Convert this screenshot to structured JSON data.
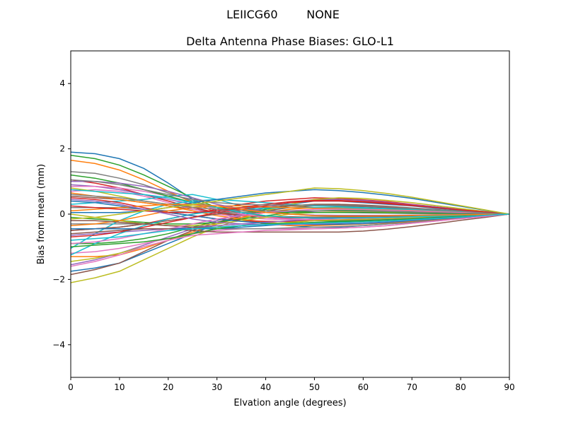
{
  "chart_data": {
    "type": "line",
    "suptitle": "LEIICG60        NONE",
    "title": "Delta Antenna Phase Biases: GLO-L1",
    "xlabel": "Elvation angle (degrees)",
    "ylabel": "Bias from mean (mm)",
    "xlim": [
      0,
      90
    ],
    "ylim": [
      -5,
      5
    ],
    "xticks": [
      0,
      10,
      20,
      30,
      40,
      50,
      60,
      70,
      80,
      90
    ],
    "yticks": [
      -4,
      -2,
      0,
      2,
      4
    ],
    "ytick_labels": [
      "−4",
      "−2",
      "0",
      "2",
      "4"
    ],
    "grid": false,
    "legend": "none",
    "x": [
      0,
      5,
      10,
      15,
      20,
      25,
      30,
      35,
      40,
      45,
      50,
      55,
      60,
      65,
      70,
      75,
      80,
      85,
      90
    ],
    "series": [
      {
        "color": "#1f77b4",
        "values": [
          1.9,
          1.85,
          1.7,
          1.4,
          0.95,
          0.45,
          0.1,
          -0.15,
          -0.3,
          -0.35,
          -0.4,
          -0.4,
          -0.35,
          -0.3,
          -0.25,
          -0.18,
          -0.12,
          -0.06,
          0
        ]
      },
      {
        "color": "#ff7f0e",
        "values": [
          1.65,
          1.55,
          1.35,
          1.05,
          0.7,
          0.35,
          0.05,
          -0.15,
          -0.3,
          -0.35,
          -0.35,
          -0.33,
          -0.3,
          -0.27,
          -0.22,
          -0.16,
          -0.1,
          -0.05,
          0
        ]
      },
      {
        "color": "#2ca02c",
        "values": [
          1.8,
          1.7,
          1.5,
          1.2,
          0.85,
          0.5,
          0.2,
          0.0,
          -0.1,
          -0.15,
          -0.2,
          -0.2,
          -0.18,
          -0.15,
          -0.12,
          -0.09,
          -0.06,
          -0.03,
          0
        ]
      },
      {
        "color": "#d62728",
        "values": [
          1.05,
          0.95,
          0.8,
          0.6,
          0.4,
          0.2,
          0.05,
          -0.05,
          -0.1,
          -0.12,
          -0.12,
          -0.12,
          -0.11,
          -0.1,
          -0.08,
          -0.06,
          -0.04,
          -0.02,
          0
        ]
      },
      {
        "color": "#9467bd",
        "values": [
          0.9,
          0.85,
          0.75,
          0.6,
          0.45,
          0.3,
          0.2,
          0.15,
          0.1,
          0.08,
          0.06,
          0.05,
          0.04,
          0.03,
          0.02,
          0.015,
          0.01,
          0.005,
          0
        ]
      },
      {
        "color": "#8c564b",
        "values": [
          0.55,
          0.5,
          0.45,
          0.35,
          0.25,
          0.15,
          0.05,
          -0.02,
          -0.06,
          -0.08,
          -0.09,
          -0.09,
          -0.08,
          -0.07,
          -0.06,
          -0.04,
          -0.03,
          -0.01,
          0
        ]
      },
      {
        "color": "#e377c2",
        "values": [
          0.7,
          0.75,
          0.7,
          0.55,
          0.35,
          0.15,
          0.0,
          -0.1,
          -0.15,
          -0.17,
          -0.18,
          -0.17,
          -0.15,
          -0.13,
          -0.1,
          -0.08,
          -0.05,
          -0.03,
          0
        ]
      },
      {
        "color": "#7f7f7f",
        "values": [
          1.3,
          1.25,
          1.1,
          0.9,
          0.65,
          0.4,
          0.2,
          0.05,
          -0.05,
          -0.1,
          -0.12,
          -0.12,
          -0.11,
          -0.1,
          -0.08,
          -0.06,
          -0.04,
          -0.02,
          0
        ]
      },
      {
        "color": "#bcbd22",
        "values": [
          0.8,
          0.7,
          0.55,
          0.4,
          0.3,
          0.25,
          0.2,
          0.2,
          0.22,
          0.25,
          0.27,
          0.26,
          0.24,
          0.2,
          0.16,
          0.12,
          0.08,
          0.04,
          0
        ]
      },
      {
        "color": "#17becf",
        "values": [
          0.3,
          0.35,
          0.4,
          0.45,
          0.55,
          0.6,
          0.45,
          0.25,
          0.1,
          0.0,
          -0.05,
          -0.06,
          -0.06,
          -0.05,
          -0.04,
          -0.03,
          -0.02,
          -0.01,
          0
        ]
      },
      {
        "color": "#1f77b4",
        "values": [
          -1.75,
          -1.65,
          -1.5,
          -1.2,
          -0.9,
          -0.6,
          -0.3,
          -0.05,
          0.15,
          0.3,
          0.4,
          0.4,
          0.35,
          0.3,
          0.25,
          0.18,
          0.12,
          0.06,
          0
        ]
      },
      {
        "color": "#ff7f0e",
        "values": [
          -1.3,
          -1.3,
          -1.25,
          -1.05,
          -0.8,
          -0.55,
          -0.3,
          -0.1,
          0.05,
          0.15,
          0.2,
          0.2,
          0.18,
          0.15,
          0.12,
          0.09,
          0.06,
          0.03,
          0
        ]
      },
      {
        "color": "#2ca02c",
        "values": [
          -0.9,
          -0.9,
          -0.85,
          -0.75,
          -0.6,
          -0.4,
          -0.2,
          0.0,
          0.15,
          0.25,
          0.3,
          0.3,
          0.27,
          0.23,
          0.18,
          0.13,
          0.09,
          0.04,
          0
        ]
      },
      {
        "color": "#d62728",
        "values": [
          -0.5,
          -0.45,
          -0.4,
          -0.3,
          -0.15,
          0.0,
          0.15,
          0.3,
          0.4,
          0.45,
          0.5,
          0.48,
          0.44,
          0.38,
          0.3,
          0.22,
          0.15,
          0.07,
          0
        ]
      },
      {
        "color": "#9467bd",
        "values": [
          -1.55,
          -1.4,
          -1.2,
          -0.95,
          -0.7,
          -0.45,
          -0.2,
          0.0,
          0.2,
          0.35,
          0.45,
          0.45,
          0.42,
          0.36,
          0.29,
          0.22,
          0.14,
          0.07,
          0
        ]
      },
      {
        "color": "#8c564b",
        "values": [
          -1.85,
          -1.7,
          -1.5,
          -1.15,
          -0.8,
          -0.5,
          -0.25,
          -0.05,
          0.1,
          0.2,
          0.25,
          0.25,
          0.23,
          0.2,
          0.16,
          0.12,
          0.08,
          0.04,
          0
        ]
      },
      {
        "color": "#e377c2",
        "values": [
          -1.2,
          -1.15,
          -1.05,
          -0.9,
          -0.75,
          -0.6,
          -0.5,
          -0.45,
          -0.45,
          -0.45,
          -0.45,
          -0.43,
          -0.4,
          -0.35,
          -0.28,
          -0.21,
          -0.14,
          -0.07,
          0
        ]
      },
      {
        "color": "#7f7f7f",
        "values": [
          -0.3,
          -0.3,
          -0.3,
          -0.3,
          -0.35,
          -0.4,
          -0.45,
          -0.45,
          -0.45,
          -0.42,
          -0.4,
          -0.38,
          -0.35,
          -0.3,
          -0.25,
          -0.18,
          -0.12,
          -0.06,
          0
        ]
      },
      {
        "color": "#bcbd22",
        "values": [
          -2.1,
          -1.95,
          -1.75,
          -1.4,
          -1.05,
          -0.7,
          -0.4,
          -0.15,
          0.1,
          0.3,
          0.45,
          0.5,
          0.48,
          0.42,
          0.35,
          0.26,
          0.17,
          0.08,
          0
        ]
      },
      {
        "color": "#17becf",
        "values": [
          -1.05,
          -0.6,
          -0.2,
          0.1,
          0.3,
          0.4,
          0.45,
          0.4,
          0.35,
          0.3,
          0.25,
          0.23,
          0.2,
          0.17,
          0.14,
          0.1,
          0.07,
          0.03,
          0
        ]
      },
      {
        "color": "#1f77b4",
        "values": [
          0.05,
          0.05,
          0.05,
          0.1,
          0.2,
          0.35,
          0.45,
          0.55,
          0.65,
          0.7,
          0.75,
          0.72,
          0.66,
          0.58,
          0.48,
          0.36,
          0.24,
          0.12,
          0
        ]
      },
      {
        "color": "#ff7f0e",
        "values": [
          0.65,
          0.55,
          0.45,
          0.35,
          0.25,
          0.1,
          -0.05,
          -0.15,
          -0.25,
          -0.3,
          -0.32,
          -0.32,
          -0.3,
          -0.26,
          -0.21,
          -0.16,
          -0.1,
          -0.05,
          0
        ]
      },
      {
        "color": "#2ca02c",
        "values": [
          -0.1,
          -0.15,
          -0.2,
          -0.25,
          -0.3,
          -0.3,
          -0.25,
          -0.15,
          -0.05,
          0.05,
          0.1,
          0.12,
          0.12,
          0.1,
          0.08,
          0.06,
          0.04,
          0.02,
          0
        ]
      },
      {
        "color": "#d62728",
        "values": [
          0.5,
          0.45,
          0.35,
          0.2,
          0.05,
          -0.05,
          -0.15,
          -0.2,
          -0.22,
          -0.22,
          -0.2,
          -0.18,
          -0.16,
          -0.14,
          -0.11,
          -0.08,
          -0.05,
          -0.03,
          0
        ]
      },
      {
        "color": "#9467bd",
        "values": [
          -0.65,
          -0.6,
          -0.55,
          -0.5,
          -0.45,
          -0.4,
          -0.35,
          -0.3,
          -0.25,
          -0.2,
          -0.15,
          -0.13,
          -0.12,
          -0.1,
          -0.08,
          -0.06,
          -0.04,
          -0.02,
          0
        ]
      },
      {
        "color": "#8c564b",
        "values": [
          -0.5,
          -0.45,
          -0.4,
          -0.3,
          -0.2,
          -0.1,
          0.0,
          0.1,
          0.2,
          0.25,
          0.3,
          0.3,
          0.28,
          0.24,
          0.19,
          0.14,
          0.09,
          0.05,
          0
        ]
      },
      {
        "color": "#e377c2",
        "values": [
          0.85,
          0.85,
          0.8,
          0.7,
          0.55,
          0.35,
          0.15,
          0.0,
          -0.1,
          -0.15,
          -0.17,
          -0.17,
          -0.15,
          -0.13,
          -0.11,
          -0.08,
          -0.05,
          -0.03,
          0
        ]
      },
      {
        "color": "#7f7f7f",
        "values": [
          0.2,
          0.2,
          0.2,
          0.15,
          0.1,
          0.05,
          0.05,
          0.05,
          0.05,
          0.05,
          0.05,
          0.05,
          0.05,
          0.04,
          0.03,
          0.02,
          0.02,
          0.01,
          0
        ]
      },
      {
        "color": "#bcbd22",
        "values": [
          0.0,
          -0.1,
          -0.2,
          -0.3,
          -0.35,
          -0.35,
          -0.3,
          -0.2,
          -0.1,
          0.0,
          0.05,
          0.07,
          0.07,
          0.06,
          0.05,
          0.04,
          0.03,
          0.01,
          0
        ]
      },
      {
        "color": "#17becf",
        "values": [
          -1.25,
          -0.9,
          -0.6,
          -0.35,
          -0.15,
          0.0,
          0.1,
          0.15,
          0.18,
          0.2,
          0.2,
          0.19,
          0.17,
          0.15,
          0.12,
          0.09,
          0.06,
          0.03,
          0
        ]
      },
      {
        "color": "#1f77b4",
        "values": [
          0.4,
          0.35,
          0.25,
          0.15,
          0.05,
          -0.05,
          -0.15,
          -0.22,
          -0.28,
          -0.3,
          -0.32,
          -0.31,
          -0.29,
          -0.25,
          -0.2,
          -0.15,
          -0.1,
          -0.05,
          0
        ]
      },
      {
        "color": "#ff7f0e",
        "values": [
          -0.35,
          -0.3,
          -0.2,
          -0.05,
          0.1,
          0.2,
          0.25,
          0.25,
          0.22,
          0.2,
          0.18,
          0.17,
          0.15,
          0.13,
          0.11,
          0.08,
          0.05,
          0.03,
          0
        ]
      },
      {
        "color": "#2ca02c",
        "values": [
          1.2,
          1.1,
          0.95,
          0.75,
          0.55,
          0.35,
          0.2,
          0.1,
          0.05,
          0.05,
          0.05,
          0.05,
          0.05,
          0.04,
          0.03,
          0.02,
          0.02,
          0.01,
          0
        ]
      },
      {
        "color": "#d62728",
        "values": [
          -0.7,
          -0.65,
          -0.55,
          -0.4,
          -0.25,
          -0.1,
          0.05,
          0.15,
          0.25,
          0.35,
          0.4,
          0.4,
          0.37,
          0.32,
          0.26,
          0.2,
          0.13,
          0.06,
          0
        ]
      },
      {
        "color": "#9467bd",
        "values": [
          1.0,
          1.0,
          0.95,
          0.85,
          0.7,
          0.5,
          0.3,
          0.15,
          0.05,
          0.0,
          -0.03,
          -0.04,
          -0.04,
          -0.04,
          -0.03,
          -0.02,
          -0.02,
          -0.01,
          0
        ]
      },
      {
        "color": "#8c564b",
        "values": [
          -0.2,
          -0.2,
          -0.25,
          -0.3,
          -0.35,
          -0.4,
          -0.4,
          -0.35,
          -0.3,
          -0.25,
          -0.2,
          -0.18,
          -0.16,
          -0.14,
          -0.11,
          -0.08,
          -0.05,
          -0.03,
          0
        ]
      },
      {
        "color": "#e377c2",
        "values": [
          -0.9,
          -0.85,
          -0.75,
          -0.6,
          -0.45,
          -0.3,
          -0.15,
          -0.05,
          0.05,
          0.1,
          0.15,
          0.15,
          0.14,
          0.12,
          0.1,
          0.07,
          0.05,
          0.02,
          0
        ]
      },
      {
        "color": "#7f7f7f",
        "values": [
          0.6,
          0.55,
          0.5,
          0.4,
          0.3,
          0.2,
          0.15,
          0.1,
          0.1,
          0.1,
          0.1,
          0.1,
          0.09,
          0.08,
          0.06,
          0.05,
          0.03,
          0.02,
          0
        ]
      },
      {
        "color": "#bcbd22",
        "values": [
          -1.45,
          -1.35,
          -1.2,
          -1.0,
          -0.8,
          -0.6,
          -0.45,
          -0.35,
          -0.3,
          -0.25,
          -0.2,
          -0.18,
          -0.16,
          -0.14,
          -0.11,
          -0.08,
          -0.05,
          -0.03,
          0
        ]
      },
      {
        "color": "#17becf",
        "values": [
          0.75,
          0.7,
          0.65,
          0.6,
          0.5,
          0.35,
          0.2,
          0.05,
          -0.05,
          -0.1,
          -0.12,
          -0.12,
          -0.11,
          -0.1,
          -0.08,
          -0.06,
          -0.04,
          -0.02,
          0
        ]
      },
      {
        "color": "#1f77b4",
        "values": [
          -0.45,
          -0.45,
          -0.45,
          -0.45,
          -0.45,
          -0.45,
          -0.45,
          -0.4,
          -0.35,
          -0.3,
          -0.25,
          -0.22,
          -0.2,
          -0.17,
          -0.14,
          -0.1,
          -0.07,
          -0.03,
          0
        ]
      },
      {
        "color": "#ff7f0e",
        "values": [
          0.1,
          0.15,
          0.2,
          0.25,
          0.3,
          0.3,
          0.25,
          0.15,
          0.05,
          0.0,
          -0.05,
          -0.06,
          -0.06,
          -0.05,
          -0.04,
          -0.03,
          -0.02,
          -0.01,
          0
        ]
      },
      {
        "color": "#2ca02c",
        "values": [
          -1.0,
          -0.95,
          -0.9,
          -0.85,
          -0.75,
          -0.6,
          -0.45,
          -0.35,
          -0.3,
          -0.28,
          -0.25,
          -0.23,
          -0.21,
          -0.18,
          -0.15,
          -0.11,
          -0.07,
          -0.04,
          0
        ]
      },
      {
        "color": "#d62728",
        "values": [
          0.25,
          0.2,
          0.15,
          0.1,
          0.05,
          0.05,
          0.1,
          0.2,
          0.3,
          0.38,
          0.42,
          0.42,
          0.39,
          0.34,
          0.27,
          0.2,
          0.13,
          0.07,
          0
        ]
      },
      {
        "color": "#9467bd",
        "values": [
          0.45,
          0.4,
          0.3,
          0.15,
          0.0,
          -0.15,
          -0.25,
          -0.3,
          -0.32,
          -0.32,
          -0.3,
          -0.28,
          -0.25,
          -0.22,
          -0.18,
          -0.13,
          -0.09,
          -0.04,
          0
        ]
      },
      {
        "color": "#8c564b",
        "values": [
          -0.6,
          -0.55,
          -0.5,
          -0.45,
          -0.45,
          -0.5,
          -0.55,
          -0.55,
          -0.55,
          -0.55,
          -0.55,
          -0.55,
          -0.52,
          -0.46,
          -0.38,
          -0.29,
          -0.19,
          -0.1,
          0
        ]
      },
      {
        "color": "#e377c2",
        "values": [
          -1.6,
          -1.45,
          -1.25,
          -1.0,
          -0.8,
          -0.65,
          -0.6,
          -0.55,
          -0.5,
          -0.48,
          -0.45,
          -0.43,
          -0.4,
          -0.35,
          -0.28,
          -0.21,
          -0.14,
          -0.07,
          0
        ]
      },
      {
        "color": "#7f7f7f",
        "values": [
          1.05,
          1.0,
          0.9,
          0.75,
          0.6,
          0.45,
          0.35,
          0.3,
          0.28,
          0.28,
          0.28,
          0.27,
          0.25,
          0.22,
          0.18,
          0.13,
          0.09,
          0.04,
          0
        ]
      },
      {
        "color": "#bcbd22",
        "values": [
          -0.15,
          -0.1,
          0.0,
          0.1,
          0.2,
          0.3,
          0.4,
          0.5,
          0.6,
          0.7,
          0.8,
          0.78,
          0.72,
          0.63,
          0.52,
          0.39,
          0.26,
          0.13,
          0
        ]
      },
      {
        "color": "#17becf",
        "values": [
          -0.8,
          -0.75,
          -0.7,
          -0.6,
          -0.5,
          -0.45,
          -0.4,
          -0.35,
          -0.32,
          -0.3,
          -0.28,
          -0.26,
          -0.24,
          -0.21,
          -0.17,
          -0.13,
          -0.09,
          -0.04,
          0
        ]
      }
    ]
  }
}
